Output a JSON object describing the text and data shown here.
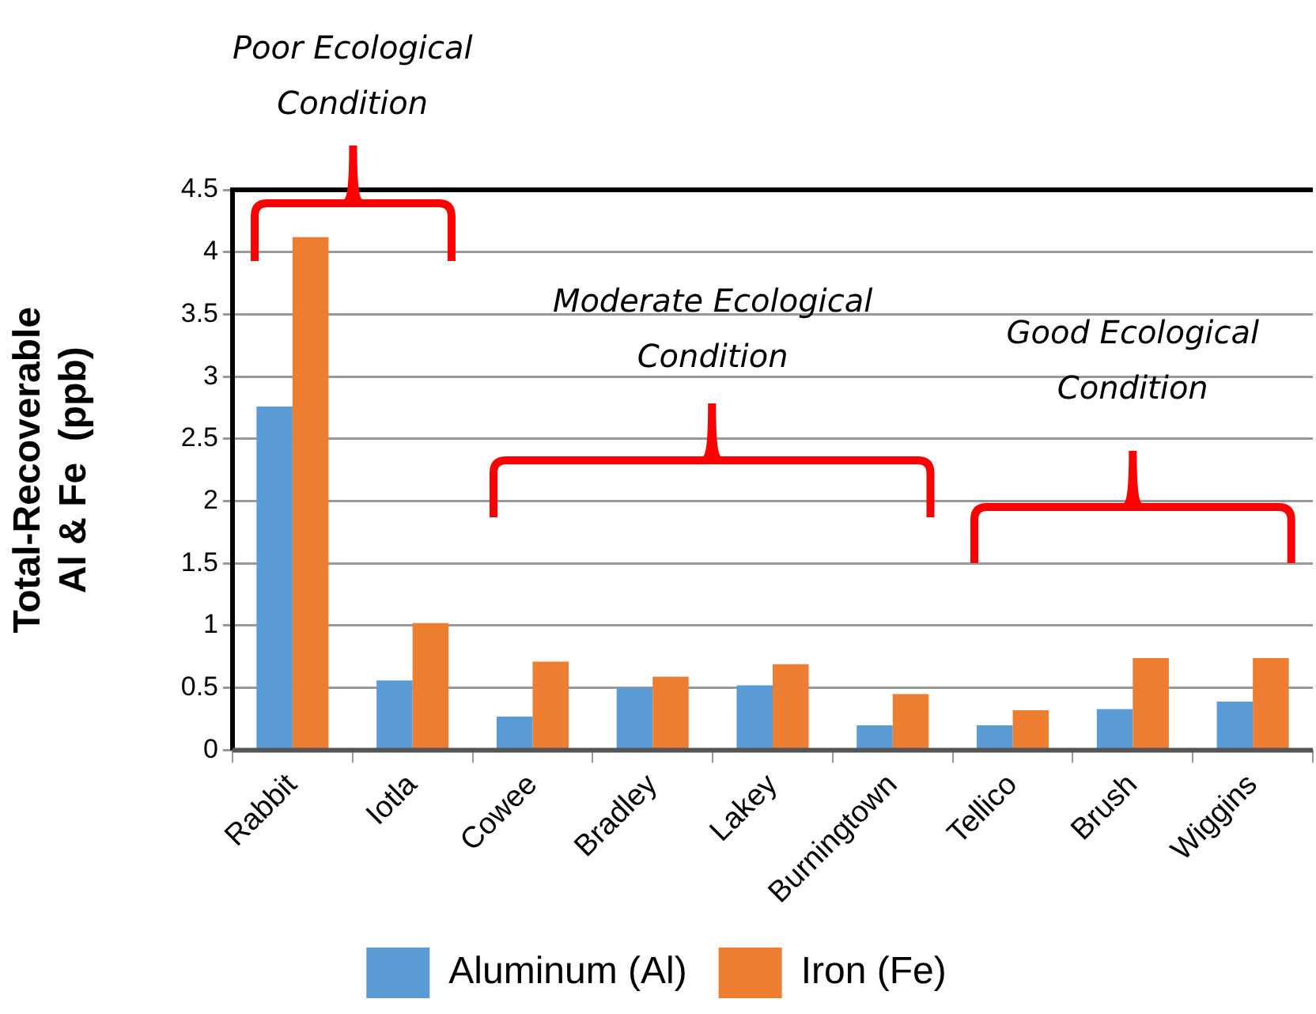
{
  "chart_data": {
    "type": "bar",
    "ylabel": "Total-Recoverable Al & Fe  (ppb)",
    "categories": [
      "Rabbit",
      "Iotla",
      "Cowee",
      "Bradley",
      "Lakey",
      "Burningtown",
      "Tellico",
      "Brush",
      "Wiggins"
    ],
    "series": [
      {
        "name": "Aluminum (Al)",
        "color": "#5b9bd5",
        "values": [
          2.76,
          0.56,
          0.27,
          0.5,
          0.52,
          0.2,
          0.2,
          0.33,
          0.39
        ]
      },
      {
        "name": "Iron (Fe)",
        "color": "#ed7d31",
        "values": [
          4.12,
          1.02,
          0.71,
          0.59,
          0.69,
          0.45,
          0.32,
          0.74,
          0.74
        ]
      }
    ],
    "ylim": [
      0,
      4.5
    ],
    "yticks": [
      0,
      0.5,
      1,
      1.5,
      2,
      2.5,
      3,
      3.5,
      4,
      4.5
    ],
    "grid": "y",
    "legend": "bottom",
    "annotations": [
      "Poor Ecological Condition",
      "Moderate Ecological Condition",
      "Good Ecological Condition"
    ]
  }
}
